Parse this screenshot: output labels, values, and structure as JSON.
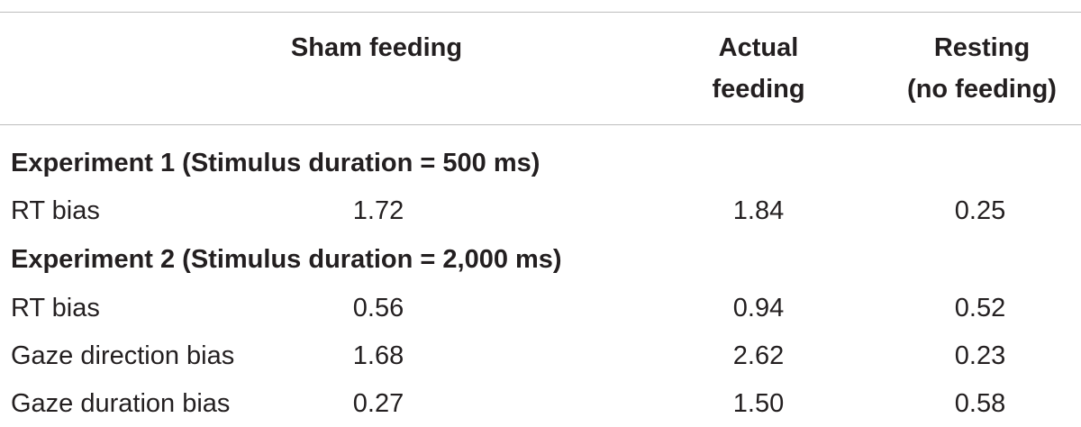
{
  "table": {
    "headers": {
      "sham": "Sham feeding",
      "actual_line1": "Actual",
      "actual_line2": "feeding",
      "resting_line1": "Resting",
      "resting_line2": "(no feeding)"
    },
    "sections": [
      {
        "title": "Experiment 1 (Stimulus duration = 500 ms)",
        "rows": [
          {
            "label": "RT bias",
            "sham": "1.72",
            "actual": "1.84",
            "resting": "0.25"
          }
        ]
      },
      {
        "title": "Experiment 2 (Stimulus duration = 2,000 ms)",
        "rows": [
          {
            "label": "RT bias",
            "sham": "0.56",
            "actual": "0.94",
            "resting": "0.52"
          },
          {
            "label": "Gaze direction bias",
            "sham": "1.68",
            "actual": "2.62",
            "resting": "0.23"
          },
          {
            "label": "Gaze duration bias",
            "sham": "0.27",
            "actual": "1.50",
            "resting": "0.58"
          }
        ]
      }
    ]
  }
}
